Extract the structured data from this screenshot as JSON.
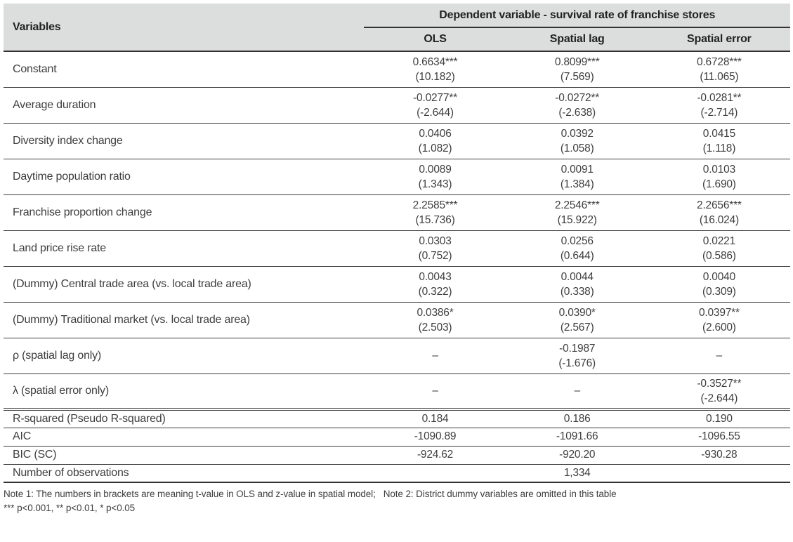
{
  "table": {
    "header": {
      "variables_label": "Variables",
      "dependent_label": "Dependent variable - survival rate of franchise stores",
      "columns": [
        "OLS",
        "Spatial lag",
        "Spatial error"
      ]
    },
    "rows": [
      {
        "variable": "Constant",
        "cells": [
          {
            "coef": "0.6634***",
            "stat": "(10.182)"
          },
          {
            "coef": "0.8099***",
            "stat": "(7.569)"
          },
          {
            "coef": "0.6728***",
            "stat": "(11.065)"
          }
        ]
      },
      {
        "variable": "Average duration",
        "cells": [
          {
            "coef": "-0.0277**",
            "stat": "(-2.644)"
          },
          {
            "coef": "-0.0272**",
            "stat": "(-2.638)"
          },
          {
            "coef": "-0.0281**",
            "stat": "(-2.714)"
          }
        ]
      },
      {
        "variable": "Diversity index change",
        "cells": [
          {
            "coef": "0.0406",
            "stat": "(1.082)"
          },
          {
            "coef": "0.0392",
            "stat": "(1.058)"
          },
          {
            "coef": "0.0415",
            "stat": "(1.118)"
          }
        ]
      },
      {
        "variable": "Daytime population ratio",
        "cells": [
          {
            "coef": "0.0089",
            "stat": "(1.343)"
          },
          {
            "coef": "0.0091",
            "stat": "(1.384)"
          },
          {
            "coef": "0.0103",
            "stat": "(1.690)"
          }
        ]
      },
      {
        "variable": "Franchise proportion change",
        "cells": [
          {
            "coef": "2.2585***",
            "stat": "(15.736)"
          },
          {
            "coef": "2.2546***",
            "stat": "(15.922)"
          },
          {
            "coef": "2.2656***",
            "stat": "(16.024)"
          }
        ]
      },
      {
        "variable": "Land price rise rate",
        "cells": [
          {
            "coef": "0.0303",
            "stat": "(0.752)"
          },
          {
            "coef": "0.0256",
            "stat": "(0.644)"
          },
          {
            "coef": "0.0221",
            "stat": "(0.586)"
          }
        ]
      },
      {
        "variable": "(Dummy) Central trade area (vs. local trade area)",
        "cells": [
          {
            "coef": "0.0043",
            "stat": "(0.322)"
          },
          {
            "coef": "0.0044",
            "stat": "(0.338)"
          },
          {
            "coef": "0.0040",
            "stat": "(0.309)"
          }
        ]
      },
      {
        "variable": "(Dummy) Traditional market (vs. local trade area)",
        "cells": [
          {
            "coef": "0.0386*",
            "stat": "(2.503)"
          },
          {
            "coef": "0.0390*",
            "stat": "(2.567)"
          },
          {
            "coef": "0.0397**",
            "stat": "(2.600)"
          }
        ]
      },
      {
        "variable": "ρ (spatial lag only)",
        "cells": [
          {
            "coef": "–",
            "stat": ""
          },
          {
            "coef": "-0.1987",
            "stat": "(-1.676)"
          },
          {
            "coef": "–",
            "stat": ""
          }
        ]
      },
      {
        "variable": "λ (spatial error only)",
        "cells": [
          {
            "coef": "–",
            "stat": ""
          },
          {
            "coef": "–",
            "stat": ""
          },
          {
            "coef": "-0.3527**",
            "stat": "(-2.644)"
          }
        ]
      }
    ],
    "summary_rows": [
      {
        "label": "R-squared (Pseudo R-squared)",
        "values": [
          "0.184",
          "0.186",
          "0.190"
        ]
      },
      {
        "label": "AIC",
        "values": [
          "-1090.89",
          "-1091.66",
          "-1096.55"
        ]
      },
      {
        "label": "BIC (SC)",
        "values": [
          "-924.62",
          "-920.20",
          "-930.28"
        ]
      }
    ],
    "observations": {
      "label": "Number of observations",
      "value": "1,334"
    },
    "notes": {
      "line1": "Note 1: The numbers in brackets are meaning t-value in OLS and z-value in spatial model;   Note 2: District dummy variables are omitted in this table",
      "line2": "*** p<0.001, ** p<0.01, * p<0.05"
    },
    "colors": {
      "header_bg": "#dcdddd",
      "border": "#323232",
      "text": "#3e3e3e"
    }
  }
}
